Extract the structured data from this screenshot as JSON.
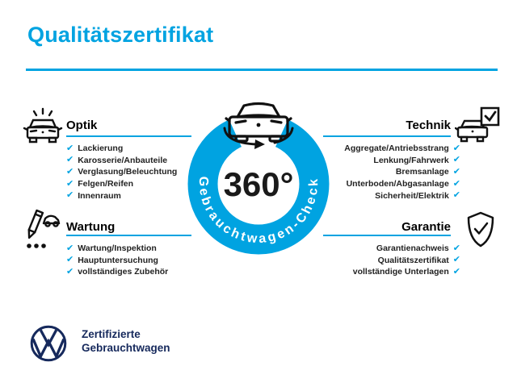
{
  "title": "Qualitätszertifikat",
  "badge": {
    "degree": "360°",
    "ring_label": "Gebrauchtwagen-Check",
    "icon": "rotating-car-icon"
  },
  "sections": [
    {
      "id": "optik",
      "label": "Optik",
      "icon": "sparkling-car-icon",
      "items": [
        "Lackierung",
        "Karosserie/Anbauteile",
        "Verglasung/Beleuchtung",
        "Felgen/Reifen",
        "Innenraum"
      ]
    },
    {
      "id": "technik",
      "label": "Technik",
      "icon": "car-checkbox-icon",
      "items": [
        "Aggregate/Antriebsstrang",
        "Lenkung/Fahrwerk",
        "Bremsanlage",
        "Unterboden/Abgasanlage",
        "Sicherheit/Elektrik"
      ]
    },
    {
      "id": "wartung",
      "label": "Wartung",
      "icon": "service-checklist-icon",
      "items": [
        "Wartung/Inspektion",
        "Hauptuntersuchung",
        "vollständiges Zubehör"
      ]
    },
    {
      "id": "garantie",
      "label": "Garantie",
      "icon": "shield-check-icon",
      "items": [
        "Garantienachweis",
        "Qualitätszertifikat",
        "vollständige Unterlagen"
      ]
    }
  ],
  "footer": {
    "logo": "vw-roundel-logo",
    "brand_line1": "Zertifizierte",
    "brand_line2": "Gebrauchtwagen"
  },
  "check_glyph": "✔",
  "colors": {
    "accent_blue": "#00A3E1",
    "dark_navy": "#16295C",
    "text_dark": "#222222",
    "icon_black": "#111111"
  }
}
